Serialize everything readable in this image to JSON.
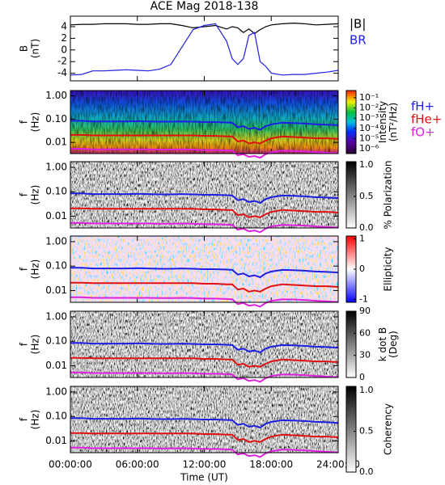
{
  "chart_data": [
    {
      "type": "line",
      "title": "ACE Mag 2018-138",
      "ylabel": [
        "B",
        "(nT)"
      ],
      "x": [
        0,
        1,
        2,
        3,
        4,
        5,
        6,
        7,
        8,
        9,
        10,
        11,
        12,
        13,
        14,
        14.5,
        15,
        15.5,
        16,
        16.5,
        17,
        17.5,
        18,
        19,
        20,
        21,
        22,
        23,
        24
      ],
      "xlim": [
        0,
        24
      ],
      "xticks": [
        0,
        6,
        12,
        18,
        24
      ],
      "ylim": [
        -5.3,
        5.8
      ],
      "yticks": [
        -4,
        -2,
        0,
        2,
        4
      ],
      "legend": "right",
      "series": [
        {
          "name": "|B|",
          "color": "#000000",
          "values": [
            4.3,
            4.4,
            4.4,
            4.5,
            4.5,
            4.5,
            4.4,
            4.4,
            4.5,
            4.5,
            4.2,
            3.8,
            4.0,
            4.2,
            3.6,
            4.0,
            3.8,
            3.0,
            3.6,
            2.8,
            3.5,
            4.0,
            4.3,
            4.5,
            4.6,
            4.5,
            4.3,
            4.4,
            4.5
          ]
        },
        {
          "name": "BR",
          "color": "#1f1fe0",
          "values": [
            -4.3,
            -4.2,
            -3.6,
            -3.6,
            -3.5,
            -3.4,
            -3.5,
            -3.6,
            -3.3,
            -2.5,
            0.5,
            3.5,
            4.2,
            4.5,
            1.5,
            -1.5,
            -2.5,
            -1.5,
            2.5,
            3.0,
            -2.0,
            -2.8,
            -4.0,
            -4.3,
            -4.2,
            -4.2,
            -4.0,
            -3.8,
            -3.5
          ]
        }
      ]
    },
    {
      "type": "spectrogram",
      "ylabel": [
        "f",
        "(Hz)"
      ],
      "ylog": true,
      "colormap": "rainbow",
      "legend": "right",
      "x": [
        0,
        1,
        2,
        3,
        4,
        5,
        6,
        7,
        8,
        9,
        10,
        11,
        12,
        13,
        14,
        14.5,
        15,
        15.5,
        16,
        16.5,
        17,
        17.5,
        18,
        19,
        20,
        21,
        22,
        23,
        24
      ],
      "xlim": [
        0,
        24
      ],
      "xticks": [
        0,
        6,
        12,
        18,
        24
      ],
      "ylim": [
        0.0033,
        1.7
      ],
      "yticks": [
        {
          "value": 1,
          "label": "1.00"
        },
        {
          "value": 0.1,
          "label": "0.10"
        },
        0.01
      ],
      "colorbar": {
        "label": [
          "Intensity",
          "(nT²/Hz)"
        ],
        "log": true,
        "lim": [
          3.5e-07,
          0.5
        ],
        "ticks": [
          {
            "value": 0.1,
            "label": "10⁻¹"
          },
          {
            "value": 0.01,
            "label": "10⁻²"
          },
          {
            "value": 0.001,
            "label": "10⁻³"
          },
          {
            "value": 0.0001,
            "label": "10⁻⁴"
          },
          {
            "value": 1e-05,
            "label": "10⁻⁵"
          },
          {
            "value": 1e-06,
            "label": "10⁻⁶"
          }
        ]
      },
      "series": [
        {
          "name": "fH+",
          "color": "#1f1fe0",
          "values": [
            0.085,
            0.085,
            0.08,
            0.08,
            0.08,
            0.08,
            0.082,
            0.08,
            0.078,
            0.078,
            0.08,
            0.078,
            0.075,
            0.075,
            0.072,
            0.07,
            0.045,
            0.05,
            0.038,
            0.042,
            0.035,
            0.05,
            0.06,
            0.07,
            0.068,
            0.065,
            0.06,
            0.058,
            0.055
          ]
        },
        {
          "name": "fHe+",
          "color": "#e01010",
          "values": [
            0.021,
            0.021,
            0.02,
            0.02,
            0.02,
            0.02,
            0.02,
            0.02,
            0.02,
            0.02,
            0.02,
            0.02,
            0.019,
            0.019,
            0.018,
            0.018,
            0.011,
            0.012,
            0.009,
            0.01,
            0.009,
            0.012,
            0.015,
            0.018,
            0.017,
            0.016,
            0.015,
            0.015,
            0.014
          ]
        },
        {
          "name": "fO+",
          "color": "#e020e0",
          "values": [
            0.0053,
            0.0053,
            0.005,
            0.005,
            0.005,
            0.005,
            0.005,
            0.005,
            0.0049,
            0.0049,
            0.005,
            0.0049,
            0.0047,
            0.0047,
            0.0045,
            0.0044,
            0.0028,
            0.0031,
            0.0024,
            0.0026,
            0.0022,
            0.0031,
            0.0038,
            0.0044,
            0.0043,
            0.0041,
            0.0038,
            0.0036,
            0.0034
          ]
        }
      ]
    },
    {
      "type": "spectrogram",
      "ylabel": [
        "f",
        "(Hz)"
      ],
      "ylog": true,
      "colormap": "gray",
      "x": [
        0,
        1,
        2,
        3,
        4,
        5,
        6,
        7,
        8,
        9,
        10,
        11,
        12,
        13,
        14,
        14.5,
        15,
        15.5,
        16,
        16.5,
        17,
        17.5,
        18,
        19,
        20,
        21,
        22,
        23,
        24
      ],
      "xlim": [
        0,
        24
      ],
      "xticks": [
        0,
        6,
        12,
        18,
        24
      ],
      "ylim": [
        0.0033,
        1.7
      ],
      "yticks": [
        {
          "value": 1,
          "label": "1.00"
        },
        {
          "value": 0.1,
          "label": "0.10"
        },
        0.01
      ],
      "colorbar": {
        "label": [
          "% Polarization"
        ],
        "log": false,
        "lim": [
          0,
          1.05
        ],
        "ticks": [
          {
            "value": 0,
            "label": "0.0"
          },
          0.5,
          {
            "value": 1,
            "label": "1.0"
          }
        ]
      },
      "series": [
        {
          "name": "fH+",
          "color": "#1f1fe0",
          "values": [
            0.085,
            0.085,
            0.08,
            0.08,
            0.08,
            0.08,
            0.082,
            0.08,
            0.078,
            0.078,
            0.08,
            0.078,
            0.075,
            0.075,
            0.072,
            0.07,
            0.045,
            0.05,
            0.038,
            0.042,
            0.035,
            0.05,
            0.06,
            0.07,
            0.068,
            0.065,
            0.06,
            0.058,
            0.055
          ]
        },
        {
          "name": "fHe+",
          "color": "#e01010",
          "values": [
            0.021,
            0.021,
            0.02,
            0.02,
            0.02,
            0.02,
            0.02,
            0.02,
            0.02,
            0.02,
            0.02,
            0.02,
            0.019,
            0.019,
            0.018,
            0.018,
            0.011,
            0.012,
            0.009,
            0.01,
            0.009,
            0.012,
            0.015,
            0.018,
            0.017,
            0.016,
            0.015,
            0.015,
            0.014
          ]
        },
        {
          "name": "fO+",
          "color": "#e020e0",
          "values": [
            0.0053,
            0.0053,
            0.005,
            0.005,
            0.005,
            0.005,
            0.005,
            0.005,
            0.0049,
            0.0049,
            0.005,
            0.0049,
            0.0047,
            0.0047,
            0.0045,
            0.0044,
            0.0028,
            0.0031,
            0.0024,
            0.0026,
            0.0022,
            0.0031,
            0.0038,
            0.0044,
            0.0043,
            0.0041,
            0.0038,
            0.0036,
            0.0034
          ]
        }
      ]
    },
    {
      "type": "spectrogram",
      "ylabel": [
        "f",
        "(Hz)"
      ],
      "ylog": true,
      "colormap": "bwr",
      "x": [
        0,
        1,
        2,
        3,
        4,
        5,
        6,
        7,
        8,
        9,
        10,
        11,
        12,
        13,
        14,
        14.5,
        15,
        15.5,
        16,
        16.5,
        17,
        17.5,
        18,
        19,
        20,
        21,
        22,
        23,
        24
      ],
      "xlim": [
        0,
        24
      ],
      "xticks": [
        0,
        6,
        12,
        18,
        24
      ],
      "ylim": [
        0.0033,
        1.7
      ],
      "yticks": [
        {
          "value": 1,
          "label": "1.00"
        },
        {
          "value": 0.1,
          "label": "0.10"
        },
        0.01
      ],
      "colorbar": {
        "label": [
          "Ellipticity"
        ],
        "log": false,
        "lim": [
          -1.1,
          1.1
        ],
        "ticks": [
          -1,
          0,
          1
        ]
      },
      "series": [
        {
          "name": "fH+",
          "color": "#1f1fe0",
          "values": [
            0.085,
            0.085,
            0.08,
            0.08,
            0.08,
            0.08,
            0.082,
            0.08,
            0.078,
            0.078,
            0.08,
            0.078,
            0.075,
            0.075,
            0.072,
            0.07,
            0.045,
            0.05,
            0.038,
            0.042,
            0.035,
            0.05,
            0.06,
            0.07,
            0.068,
            0.065,
            0.06,
            0.058,
            0.055
          ]
        },
        {
          "name": "fHe+",
          "color": "#e01010",
          "values": [
            0.021,
            0.021,
            0.02,
            0.02,
            0.02,
            0.02,
            0.02,
            0.02,
            0.02,
            0.02,
            0.02,
            0.02,
            0.019,
            0.019,
            0.018,
            0.018,
            0.011,
            0.012,
            0.009,
            0.01,
            0.009,
            0.012,
            0.015,
            0.018,
            0.017,
            0.016,
            0.015,
            0.015,
            0.014
          ]
        },
        {
          "name": "fO+",
          "color": "#e020e0",
          "values": [
            0.0053,
            0.0053,
            0.005,
            0.005,
            0.005,
            0.005,
            0.005,
            0.005,
            0.0049,
            0.0049,
            0.005,
            0.0049,
            0.0047,
            0.0047,
            0.0045,
            0.0044,
            0.0028,
            0.0031,
            0.0024,
            0.0026,
            0.0022,
            0.0031,
            0.0038,
            0.0044,
            0.0043,
            0.0041,
            0.0038,
            0.0036,
            0.0034
          ]
        }
      ]
    },
    {
      "type": "spectrogram",
      "ylabel": [
        "f",
        "(Hz)"
      ],
      "ylog": true,
      "colormap": "gray",
      "x": [
        0,
        1,
        2,
        3,
        4,
        5,
        6,
        7,
        8,
        9,
        10,
        11,
        12,
        13,
        14,
        14.5,
        15,
        15.5,
        16,
        16.5,
        17,
        17.5,
        18,
        19,
        20,
        21,
        22,
        23,
        24
      ],
      "xlim": [
        0,
        24
      ],
      "xticks": [
        0,
        6,
        12,
        18,
        24
      ],
      "ylim": [
        0.0033,
        1.7
      ],
      "yticks": [
        {
          "value": 1,
          "label": "1.00"
        },
        {
          "value": 0.1,
          "label": "0.10"
        },
        0.01
      ],
      "colorbar": {
        "label": [
          "k dot B",
          "(Deg)"
        ],
        "log": false,
        "lim": [
          0,
          90
        ],
        "ticks": [
          0,
          30,
          60,
          90
        ]
      },
      "series": [
        {
          "name": "fH+",
          "color": "#1f1fe0",
          "values": [
            0.085,
            0.085,
            0.08,
            0.08,
            0.08,
            0.08,
            0.082,
            0.08,
            0.078,
            0.078,
            0.08,
            0.078,
            0.075,
            0.075,
            0.072,
            0.07,
            0.045,
            0.05,
            0.038,
            0.042,
            0.035,
            0.05,
            0.06,
            0.07,
            0.068,
            0.065,
            0.06,
            0.058,
            0.055
          ]
        },
        {
          "name": "fHe+",
          "color": "#e01010",
          "values": [
            0.021,
            0.021,
            0.02,
            0.02,
            0.02,
            0.02,
            0.02,
            0.02,
            0.02,
            0.02,
            0.02,
            0.02,
            0.019,
            0.019,
            0.018,
            0.018,
            0.011,
            0.012,
            0.009,
            0.01,
            0.009,
            0.012,
            0.015,
            0.018,
            0.017,
            0.016,
            0.015,
            0.015,
            0.014
          ]
        },
        {
          "name": "fO+",
          "color": "#e020e0",
          "values": [
            0.0053,
            0.0053,
            0.005,
            0.005,
            0.005,
            0.005,
            0.005,
            0.005,
            0.0049,
            0.0049,
            0.005,
            0.0049,
            0.0047,
            0.0047,
            0.0045,
            0.0044,
            0.0028,
            0.0031,
            0.0024,
            0.0026,
            0.0022,
            0.0031,
            0.0038,
            0.0044,
            0.0043,
            0.0041,
            0.0038,
            0.0036,
            0.0034
          ]
        }
      ]
    },
    {
      "type": "spectrogram",
      "ylabel": [
        "f",
        "(Hz)"
      ],
      "ylog": true,
      "colormap": "gray",
      "x": [
        0,
        1,
        2,
        3,
        4,
        5,
        6,
        7,
        8,
        9,
        10,
        11,
        12,
        13,
        14,
        14.5,
        15,
        15.5,
        16,
        16.5,
        17,
        17.5,
        18,
        19,
        20,
        21,
        22,
        23,
        24
      ],
      "xlim": [
        0,
        24
      ],
      "xlabel": "Time (UT)",
      "xticks": [
        {
          "value": 0,
          "label": "00:00:00"
        },
        {
          "value": 6,
          "label": "06:00:00"
        },
        {
          "value": 12,
          "label": "12:00:00"
        },
        {
          "value": 18,
          "label": "18:00:00"
        },
        {
          "value": 24,
          "label": "24:00:00"
        }
      ],
      "ylim": [
        0.0033,
        1.7
      ],
      "yticks": [
        {
          "value": 1,
          "label": "1.00"
        },
        {
          "value": 0.1,
          "label": "0.10"
        },
        0.01
      ],
      "colorbar": {
        "label": [
          "Coherency"
        ],
        "log": false,
        "lim": [
          0,
          1.05
        ],
        "ticks": [
          {
            "value": 0,
            "label": "0.0"
          },
          0.5,
          {
            "value": 1,
            "label": "1.0"
          }
        ]
      },
      "series": [
        {
          "name": "fH+",
          "color": "#1f1fe0",
          "values": [
            0.085,
            0.085,
            0.08,
            0.08,
            0.08,
            0.08,
            0.082,
            0.08,
            0.078,
            0.078,
            0.08,
            0.078,
            0.075,
            0.075,
            0.072,
            0.07,
            0.045,
            0.05,
            0.038,
            0.042,
            0.035,
            0.05,
            0.06,
            0.07,
            0.068,
            0.065,
            0.06,
            0.058,
            0.055
          ]
        },
        {
          "name": "fHe+",
          "color": "#e01010",
          "values": [
            0.021,
            0.021,
            0.02,
            0.02,
            0.02,
            0.02,
            0.02,
            0.02,
            0.02,
            0.02,
            0.02,
            0.02,
            0.019,
            0.019,
            0.018,
            0.018,
            0.011,
            0.012,
            0.009,
            0.01,
            0.009,
            0.012,
            0.015,
            0.018,
            0.017,
            0.016,
            0.015,
            0.015,
            0.014
          ]
        },
        {
          "name": "fO+",
          "color": "#e020e0",
          "values": [
            0.0053,
            0.0053,
            0.005,
            0.005,
            0.005,
            0.005,
            0.005,
            0.005,
            0.0049,
            0.0049,
            0.005,
            0.0049,
            0.0047,
            0.0047,
            0.0045,
            0.0044,
            0.0028,
            0.0031,
            0.0024,
            0.0026,
            0.0022,
            0.0031,
            0.0038,
            0.0044,
            0.0043,
            0.0041,
            0.0038,
            0.0036,
            0.0034
          ]
        }
      ]
    }
  ]
}
